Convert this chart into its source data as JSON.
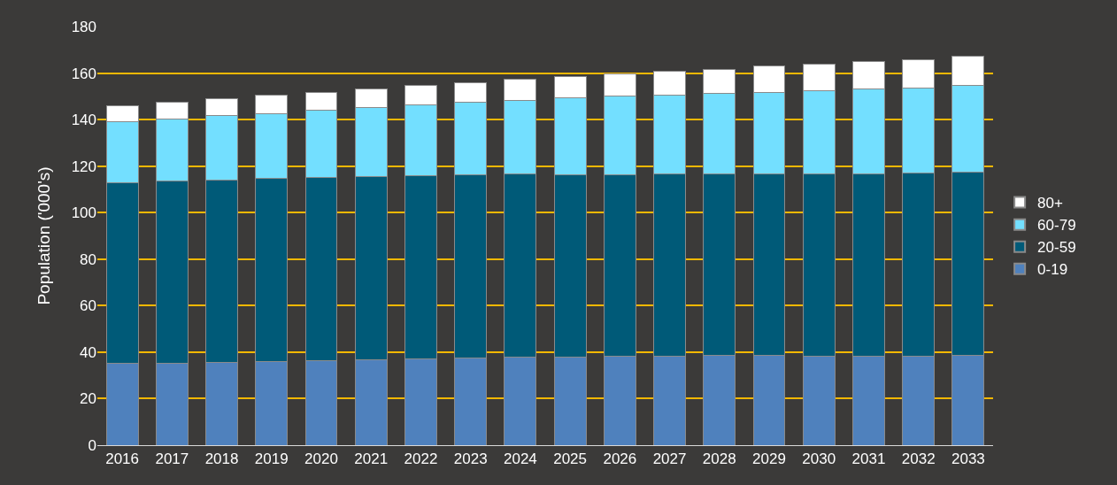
{
  "chart_data": {
    "type": "bar",
    "stacked": true,
    "ylabel": "Population ('000's)",
    "categories": [
      "2016",
      "2017",
      "2018",
      "2019",
      "2020",
      "2021",
      "2022",
      "2023",
      "2024",
      "2025",
      "2026",
      "2027",
      "2028",
      "2029",
      "2030",
      "2031",
      "2032",
      "2033"
    ],
    "series": [
      {
        "name": "0-19",
        "color": "#4f81bd",
        "values": [
          35.3,
          35.3,
          35.6,
          35.9,
          36.3,
          36.7,
          37.1,
          37.5,
          37.9,
          37.9,
          38.3,
          38.4,
          38.7,
          38.7,
          38.4,
          38.3,
          38.3,
          38.7
        ]
      },
      {
        "name": "20-59",
        "color": "#005a78",
        "values": [
          77.6,
          78.3,
          78.5,
          78.9,
          78.9,
          78.9,
          78.8,
          78.7,
          78.6,
          78.5,
          78.1,
          78.1,
          77.8,
          77.9,
          78.4,
          78.5,
          78.6,
          78.7
        ]
      },
      {
        "name": "60-79",
        "color": "#73dfff",
        "values": [
          26.3,
          26.8,
          27.5,
          27.9,
          28.8,
          29.4,
          30.5,
          31.1,
          31.9,
          32.8,
          33.6,
          34.0,
          34.7,
          35.1,
          35.6,
          36.3,
          36.7,
          37.2
        ]
      },
      {
        "name": "80+",
        "color": "#ffffff",
        "values": [
          6.9,
          7.2,
          7.4,
          7.8,
          7.8,
          8.2,
          8.2,
          8.7,
          9.0,
          9.2,
          9.6,
          10.4,
          10.4,
          11.2,
          11.4,
          11.9,
          12.0,
          12.6
        ]
      }
    ],
    "ylim": [
      0,
      180
    ],
    "yticks": [
      0,
      20,
      40,
      60,
      80,
      100,
      120,
      140,
      160,
      180
    ],
    "grid": "y",
    "legend": "right"
  }
}
